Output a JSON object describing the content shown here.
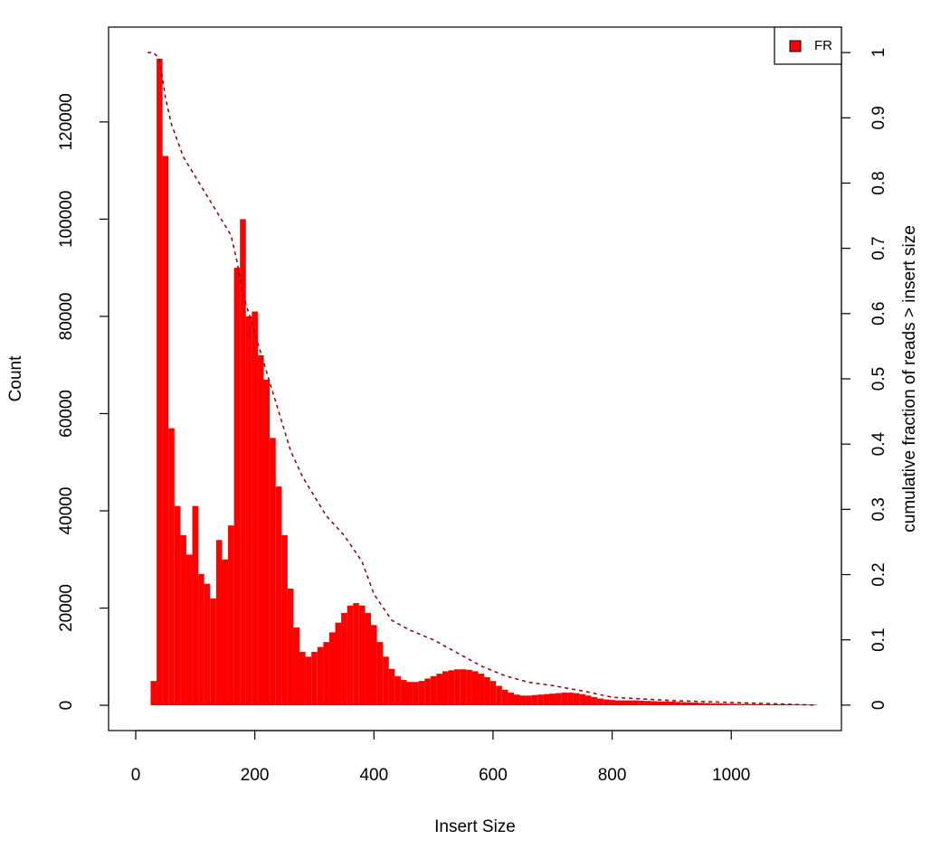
{
  "chart_data": {
    "type": "bar",
    "xlabel": "Insert Size",
    "ylabel": "Count",
    "y2label": "cumulative fraction of reads > insert size",
    "xlim": [
      -45.6,
      1185
    ],
    "ylim": [
      -5200,
      139500
    ],
    "y2lim": [
      -0.039,
      1.039
    ],
    "xticks": [
      0,
      200,
      400,
      600,
      800,
      1000
    ],
    "yticks": [
      0,
      20000,
      40000,
      60000,
      80000,
      100000,
      120000
    ],
    "y2ticks": [
      0,
      0.1,
      0.2,
      0.3,
      0.4,
      0.5,
      0.6,
      0.7,
      0.8,
      0.9,
      1
    ],
    "legend": "top-right",
    "series": [
      {
        "name": "FR",
        "color": "#ff0000",
        "x": [
          20,
          30,
          40,
          50,
          60,
          70,
          80,
          90,
          100,
          110,
          120,
          130,
          140,
          150,
          160,
          170,
          180,
          190,
          200,
          210,
          220,
          230,
          240,
          250,
          260,
          270,
          280,
          290,
          300,
          310,
          320,
          330,
          340,
          350,
          360,
          370,
          380,
          390,
          400,
          410,
          420,
          430,
          440,
          450,
          460,
          470,
          480,
          490,
          500,
          510,
          520,
          530,
          540,
          550,
          560,
          570,
          580,
          590,
          600,
          610,
          620,
          630,
          640,
          650,
          660,
          670,
          680,
          690,
          700,
          710,
          720,
          730,
          740,
          750,
          760,
          770,
          780,
          790,
          800,
          810,
          820,
          830,
          840,
          850,
          860,
          870,
          880,
          890,
          900,
          910,
          920,
          930,
          940,
          950,
          960,
          970,
          980,
          990,
          1000,
          1020,
          1040,
          1060,
          1080,
          1100,
          1120,
          1140
        ],
        "values": [
          0,
          5000,
          133000,
          113000,
          57000,
          41000,
          35000,
          31000,
          41000,
          27000,
          25000,
          22000,
          34000,
          30000,
          37000,
          90000,
          100000,
          80000,
          81000,
          72000,
          67000,
          55000,
          45000,
          35000,
          24000,
          16000,
          11000,
          10000,
          11000,
          12000,
          13000,
          15000,
          17000,
          19000,
          20500,
          21000,
          20500,
          19000,
          16500,
          13000,
          10000,
          7500,
          6000,
          5200,
          4800,
          4800,
          5000,
          5500,
          6000,
          6500,
          7000,
          7200,
          7400,
          7400,
          7300,
          7000,
          6500,
          5800,
          5000,
          4000,
          3200,
          2600,
          2200,
          2000,
          2000,
          2100,
          2200,
          2300,
          2400,
          2500,
          2600,
          2600,
          2500,
          2300,
          2000,
          1700,
          1400,
          1200,
          1100,
          1000,
          1000,
          1000,
          1000,
          950,
          900,
          850,
          800,
          800,
          750,
          700,
          650,
          600,
          550,
          500,
          450,
          400,
          380,
          350,
          320,
          280,
          250,
          220,
          200,
          180,
          160,
          150
        ]
      }
    ],
    "cumulative": {
      "color": "#8b0000",
      "axis": "y2",
      "x": [
        20,
        30,
        40,
        50,
        60,
        80,
        100,
        120,
        140,
        160,
        170,
        180,
        200,
        220,
        240,
        260,
        280,
        300,
        320,
        350,
        380,
        400,
        430,
        460,
        500,
        540,
        580,
        620,
        660,
        700,
        760,
        800,
        900,
        1000,
        1140
      ],
      "values": [
        1,
        1,
        0.99,
        0.93,
        0.89,
        0.84,
        0.81,
        0.78,
        0.75,
        0.72,
        0.68,
        0.63,
        0.57,
        0.51,
        0.45,
        0.39,
        0.35,
        0.32,
        0.29,
        0.26,
        0.22,
        0.17,
        0.13,
        0.115,
        0.1,
        0.08,
        0.06,
        0.045,
        0.035,
        0.03,
        0.02,
        0.012,
        0.007,
        0.004,
        0
      ]
    }
  }
}
